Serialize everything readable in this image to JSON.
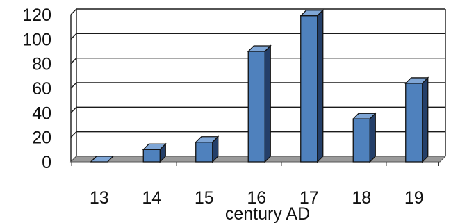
{
  "chart_data": {
    "type": "bar",
    "style": "3d-column",
    "categories": [
      "13",
      "14",
      "15",
      "16",
      "17",
      "18",
      "19"
    ],
    "values": [
      0,
      10,
      16,
      90,
      119,
      35,
      64
    ],
    "xlabel": "century AD",
    "ylabel": "",
    "ylim": [
      0,
      120
    ],
    "yticks": [
      "0",
      "20",
      "40",
      "60",
      "80",
      "100",
      "120"
    ],
    "grid": true,
    "legend": "none",
    "colors": {
      "bar_front": "#4f81bd",
      "bar_top": "#7fa6d6",
      "bar_side": "#243f69",
      "bar_outline": "#111111",
      "grid": "#1a1a1a",
      "floor": "#9a9a9a"
    }
  }
}
